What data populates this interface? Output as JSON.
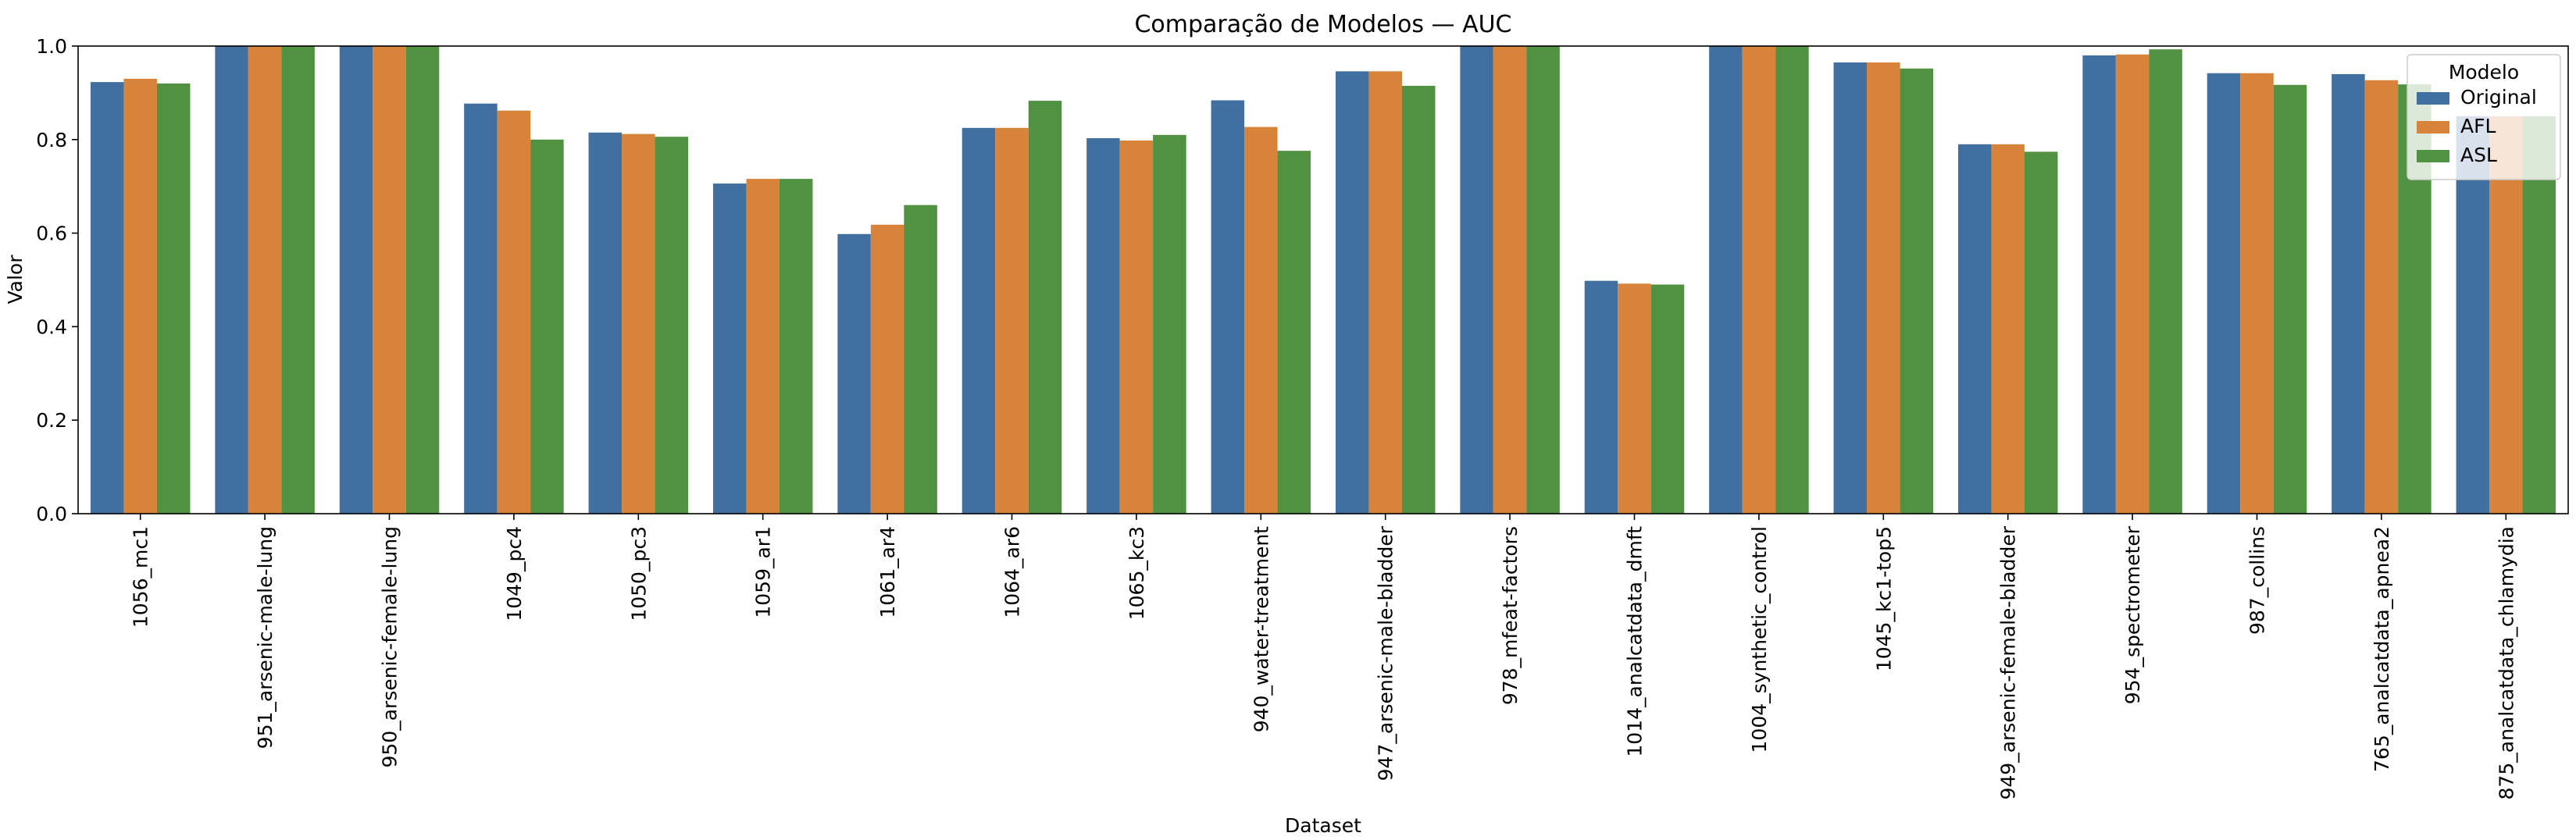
{
  "chart_data": {
    "type": "bar",
    "title": "Comparação de Modelos — AUC",
    "xlabel": "Dataset",
    "ylabel": "Valor",
    "ylim": [
      0,
      1.0
    ],
    "yticks": [
      "0.0",
      "0.2",
      "0.4",
      "0.6",
      "0.8",
      "1.0"
    ],
    "grid": false,
    "legend": {
      "title": "Modelo",
      "placement": "top-right"
    },
    "categories": [
      "1056_mc1",
      "951_arsenic-male-lung",
      "950_arsenic-female-lung",
      "1049_pc4",
      "1050_pc3",
      "1059_ar1",
      "1061_ar4",
      "1064_ar6",
      "1065_kc3",
      "940_water-treatment",
      "947_arsenic-male-bladder",
      "978_mfeat-factors",
      "1014_analcatdata_dmft",
      "1004_synthetic_control",
      "1045_kc1-top5",
      "949_arsenic-female-bladder",
      "954_spectrometer",
      "987_collins",
      "765_analcatdata_apnea2",
      "875_analcatdata_chlamydia"
    ],
    "series": [
      {
        "name": "Original",
        "color": "#4170a0",
        "values": [
          0.923,
          1.0,
          1.0,
          0.877,
          0.815,
          0.706,
          0.598,
          0.825,
          0.803,
          0.884,
          0.946,
          1.0,
          0.498,
          1.0,
          0.965,
          0.79,
          0.98,
          0.942,
          0.94,
          0.85
        ]
      },
      {
        "name": "AFL",
        "color": "#d7843a",
        "values": [
          0.93,
          1.0,
          1.0,
          0.862,
          0.812,
          0.716,
          0.618,
          0.825,
          0.798,
          0.827,
          0.946,
          1.0,
          0.492,
          1.0,
          0.965,
          0.79,
          0.982,
          0.942,
          0.927,
          0.85
        ]
      },
      {
        "name": "ASL",
        "color": "#509142",
        "values": [
          0.92,
          1.0,
          1.0,
          0.8,
          0.806,
          0.716,
          0.66,
          0.883,
          0.81,
          0.776,
          0.915,
          1.0,
          0.49,
          1.0,
          0.952,
          0.774,
          0.993,
          0.917,
          0.918,
          0.85
        ]
      }
    ]
  }
}
